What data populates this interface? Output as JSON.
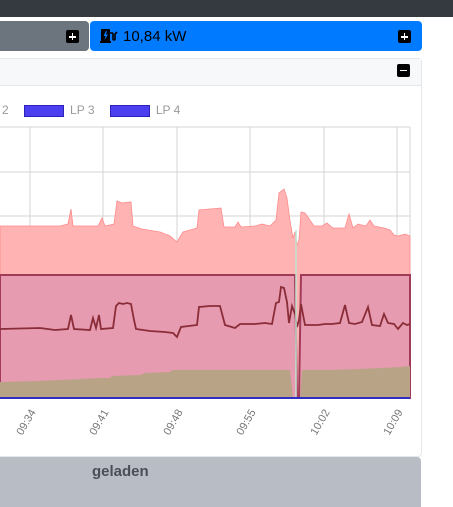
{
  "header": {
    "power_value": "10,84 kW"
  },
  "legend": [
    {
      "label": "2",
      "has_swatch": false
    },
    {
      "label": "LP 3",
      "has_swatch": true
    },
    {
      "label": "LP 4",
      "has_swatch": true
    }
  ],
  "chart_data": {
    "type": "area",
    "x_ticks": [
      "09:34",
      "09:41",
      "09:48",
      "09:55",
      "10:02",
      "10:09"
    ],
    "colors": {
      "upper_area": "#ffb3b3",
      "middle_area": "#e69bb0",
      "lower_area": "#b9a387",
      "line": "#8b2d38",
      "axis": "#2f2fc4"
    }
  },
  "footer": {
    "label": "geladen"
  }
}
